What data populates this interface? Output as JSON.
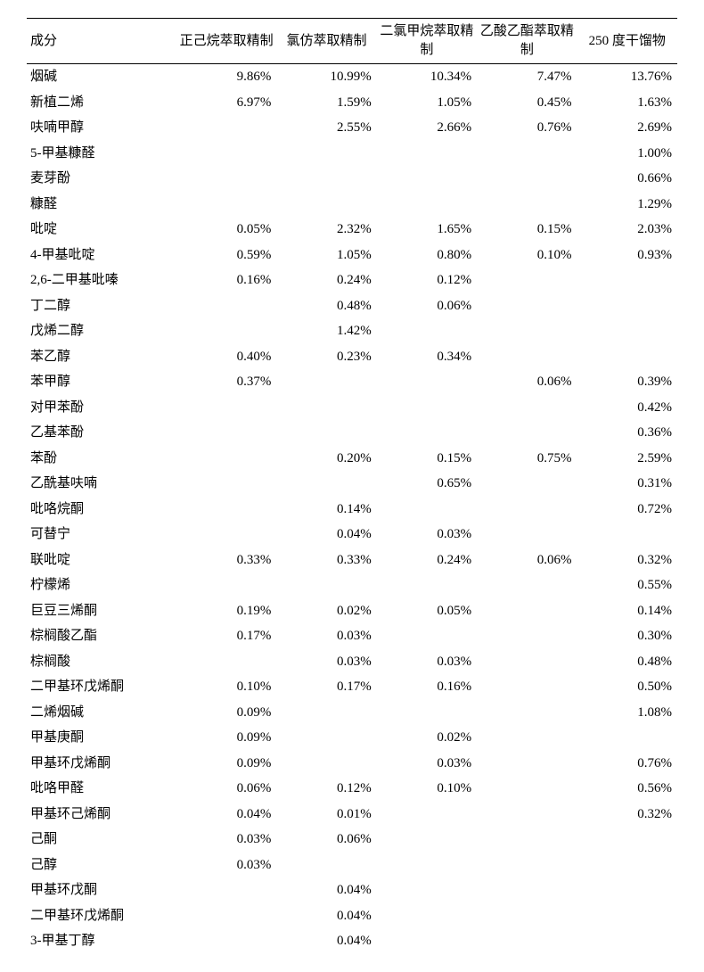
{
  "table": {
    "columns": [
      "成分",
      "正己烷萃取精制",
      "氯仿萃取精制",
      "二氯甲烷萃取精制",
      "乙酸乙酯萃取精制",
      "250 度干馏物"
    ],
    "font_size_pt": 11,
    "header_font_size_pt": 11,
    "border_color": "#000000",
    "background_color": "#ffffff",
    "text_color": "#000000",
    "rows": [
      [
        "烟碱",
        "9.86%",
        "10.99%",
        "10.34%",
        "7.47%",
        "13.76%"
      ],
      [
        "新植二烯",
        "6.97%",
        "1.59%",
        "1.05%",
        "0.45%",
        "1.63%"
      ],
      [
        "呋喃甲醇",
        "",
        "2.55%",
        "2.66%",
        "0.76%",
        "2.69%"
      ],
      [
        "5-甲基糠醛",
        "",
        "",
        "",
        "",
        "1.00%"
      ],
      [
        "麦芽酚",
        "",
        "",
        "",
        "",
        "0.66%"
      ],
      [
        "糠醛",
        "",
        "",
        "",
        "",
        "1.29%"
      ],
      [
        "吡啶",
        "0.05%",
        "2.32%",
        "1.65%",
        "0.15%",
        "2.03%"
      ],
      [
        "4-甲基吡啶",
        "0.59%",
        "1.05%",
        "0.80%",
        "0.10%",
        "0.93%"
      ],
      [
        "2,6-二甲基吡嗪",
        "0.16%",
        "0.24%",
        "0.12%",
        "",
        ""
      ],
      [
        "丁二醇",
        "",
        "0.48%",
        "0.06%",
        "",
        ""
      ],
      [
        "戊烯二醇",
        "",
        "1.42%",
        "",
        "",
        ""
      ],
      [
        "苯乙醇",
        "0.40%",
        "0.23%",
        "0.34%",
        "",
        ""
      ],
      [
        "苯甲醇",
        "0.37%",
        "",
        "",
        "0.06%",
        "0.39%"
      ],
      [
        "对甲苯酚",
        "",
        "",
        "",
        "",
        "0.42%"
      ],
      [
        "乙基苯酚",
        "",
        "",
        "",
        "",
        "0.36%"
      ],
      [
        "苯酚",
        "",
        "0.20%",
        "0.15%",
        "0.75%",
        "2.59%"
      ],
      [
        "乙酰基呋喃",
        "",
        "",
        "0.65%",
        "",
        "0.31%"
      ],
      [
        "吡咯烷酮",
        "",
        "0.14%",
        "",
        "",
        "0.72%"
      ],
      [
        "可替宁",
        "",
        "0.04%",
        "0.03%",
        "",
        ""
      ],
      [
        "联吡啶",
        "0.33%",
        "0.33%",
        "0.24%",
        "0.06%",
        "0.32%"
      ],
      [
        "柠檬烯",
        "",
        "",
        "",
        "",
        "0.55%"
      ],
      [
        "巨豆三烯酮",
        "0.19%",
        "0.02%",
        "0.05%",
        "",
        "0.14%"
      ],
      [
        "棕榈酸乙酯",
        "0.17%",
        "0.03%",
        "",
        "",
        "0.30%"
      ],
      [
        "棕榈酸",
        "",
        "0.03%",
        "0.03%",
        "",
        "0.48%"
      ],
      [
        "二甲基环戊烯酮",
        "0.10%",
        "0.17%",
        "0.16%",
        "",
        "0.50%"
      ],
      [
        "二烯烟碱",
        "0.09%",
        "",
        "",
        "",
        "1.08%"
      ],
      [
        "甲基庚酮",
        "0.09%",
        "",
        "0.02%",
        "",
        ""
      ],
      [
        "甲基环戊烯酮",
        "0.09%",
        "",
        "0.03%",
        "",
        "0.76%"
      ],
      [
        "吡咯甲醛",
        "0.06%",
        "0.12%",
        "0.10%",
        "",
        "0.56%"
      ],
      [
        "甲基环己烯酮",
        "0.04%",
        "0.01%",
        "",
        "",
        "0.32%"
      ],
      [
        "己酮",
        "0.03%",
        "0.06%",
        "",
        "",
        ""
      ],
      [
        "己醇",
        "0.03%",
        "",
        "",
        "",
        ""
      ],
      [
        "甲基环戊酮",
        "",
        "0.04%",
        "",
        "",
        ""
      ],
      [
        "二甲基环戊烯酮",
        "",
        "0.04%",
        "",
        "",
        ""
      ],
      [
        "3-甲基丁醇",
        "",
        "0.04%",
        "",
        "",
        ""
      ]
    ]
  }
}
